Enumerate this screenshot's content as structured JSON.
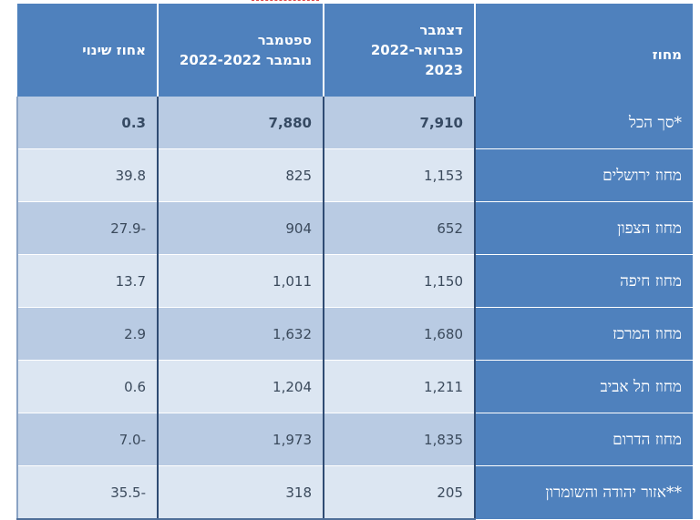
{
  "table": {
    "headers": {
      "change_pct": "אחוז שינוי",
      "sep_nov_line1": "ספטמבר",
      "sep_nov_line2": "2022-נובמבר 2022",
      "dec_feb_line1": "דצמבר",
      "dec_feb_line2": "2022-פברואר 2023",
      "district": "מחוז"
    },
    "rows": [
      {
        "district": "סך הכל*",
        "dec_feb": "7,910",
        "sep_nov": "7,880",
        "change": "0.3"
      },
      {
        "district": "מחוז ירושלים",
        "dec_feb": "1,153",
        "sep_nov": "825",
        "change": "39.8"
      },
      {
        "district": "מחוז הצפון",
        "dec_feb": "652",
        "sep_nov": "904",
        "change": "27.9-"
      },
      {
        "district": "מחוז חיפה",
        "dec_feb": "1,150",
        "sep_nov": "1,011",
        "change": "13.7"
      },
      {
        "district": "מחוז המרכז",
        "dec_feb": "1,680",
        "sep_nov": "1,632",
        "change": "2.9"
      },
      {
        "district": "מחוז תל אביב",
        "dec_feb": "1,211",
        "sep_nov": "1,204",
        "change": "0.6"
      },
      {
        "district": "מחוז הדרום",
        "dec_feb": "1,835",
        "sep_nov": "1,973",
        "change": "7.0-"
      },
      {
        "district": "אזור יהודה והשומרון**",
        "dec_feb": "205",
        "sep_nov": "318",
        "change": "35.5-"
      }
    ]
  }
}
